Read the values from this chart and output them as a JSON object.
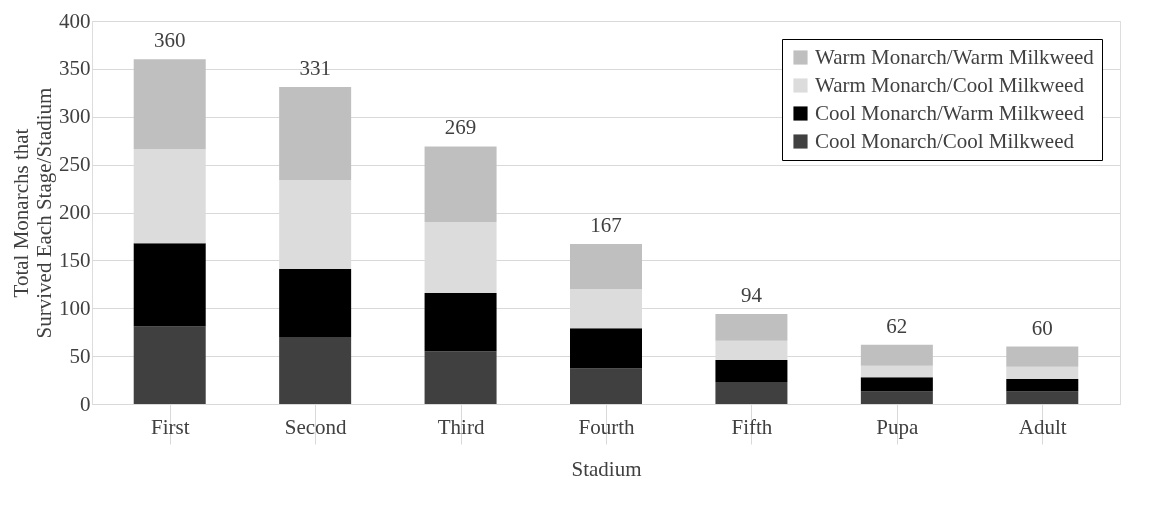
{
  "chart_data": {
    "type": "bar",
    "stacked": true,
    "xlabel": "Stadium",
    "ylabel": "Total Monarchs that Survived Each Stage/Stadium",
    "categories": [
      "First",
      "Second",
      "Third",
      "Fourth",
      "Fifth",
      "Pupa",
      "Adult"
    ],
    "series": [
      {
        "name": "Cool Monarch/Cool Milkweed",
        "color": "#404040",
        "values": [
          81,
          70,
          55,
          37,
          23,
          13,
          13
        ]
      },
      {
        "name": "Cool Monarch/Warm Milkweed",
        "color": "#000000",
        "values": [
          87,
          71,
          61,
          42,
          23,
          15,
          13
        ]
      },
      {
        "name": "Warm Monarch/Cool Milkweed",
        "color": "#dcdcdc",
        "values": [
          98,
          93,
          74,
          41,
          20,
          12,
          13
        ]
      },
      {
        "name": "Warm Monarch/Warm Milkweed",
        "color": "#bfbfbf",
        "values": [
          94,
          97,
          79,
          47,
          28,
          22,
          21
        ]
      }
    ],
    "totals": [
      "360",
      "331",
      "269",
      "167",
      "94",
      "62",
      "60"
    ],
    "ylim": [
      0,
      400
    ],
    "yticks": [
      0,
      50,
      100,
      150,
      200,
      250,
      300,
      350,
      400
    ],
    "grid": "y",
    "legend": "top right"
  }
}
